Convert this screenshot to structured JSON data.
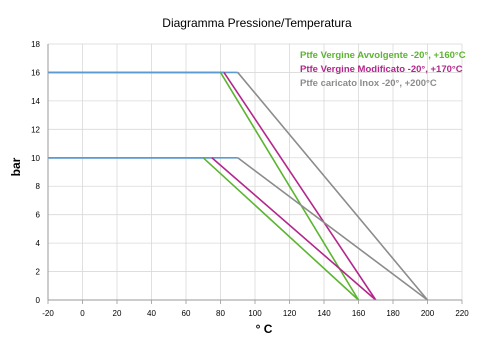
{
  "chart_data": {
    "type": "line",
    "title": "Diagramma Pressione/Temperatura",
    "xlabel": "° C",
    "ylabel": "bar",
    "xlim": [
      -20,
      220
    ],
    "ylim": [
      0,
      18
    ],
    "x_ticks": [
      "-20",
      "0",
      "20",
      "40",
      "60",
      "80",
      "100",
      "120",
      "140",
      "160",
      "180",
      "200",
      "220"
    ],
    "y_ticks": [
      "0",
      "2",
      "4",
      "6",
      "8",
      "10",
      "12",
      "14",
      "16",
      "18"
    ],
    "grid": true,
    "legend_position": "top-right",
    "series": [
      {
        "name": "Ptfe Vergine Avvolgente -20°, +160°C",
        "color": "#5cb531",
        "segments": [
          [
            [
              -20,
              16
            ],
            [
              80,
              16
            ],
            [
              160,
              0
            ]
          ],
          [
            [
              -20,
              10
            ],
            [
              70,
              10
            ],
            [
              160,
              0
            ]
          ]
        ]
      },
      {
        "name": "Ptfe Vergine Modificato -20°, +170°C",
        "color": "#b3268c",
        "segments": [
          [
            [
              -20,
              16
            ],
            [
              82,
              16
            ],
            [
              170,
              0
            ]
          ],
          [
            [
              -20,
              10
            ],
            [
              75,
              10
            ],
            [
              170,
              0
            ]
          ]
        ]
      },
      {
        "name": "Ptfe caricato Inox -20°, +200°C",
        "color": "#8c8c8c",
        "segments": [
          [
            [
              -20,
              16
            ],
            [
              90,
              16
            ],
            [
              200,
              0
            ]
          ],
          [
            [
              -20,
              10
            ],
            [
              90,
              10
            ],
            [
              200,
              0
            ]
          ]
        ]
      }
    ],
    "flat_color": "#5b9bd5"
  }
}
